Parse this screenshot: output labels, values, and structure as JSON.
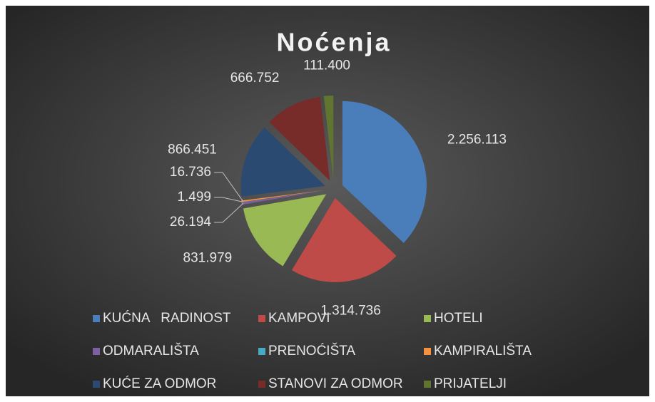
{
  "chart_data": {
    "type": "pie",
    "title": "Noćenja",
    "categories": [
      "KUĆNA   RADINOST",
      "KAMPOVI",
      "HOTELI",
      "ODMARALIŠTA",
      "PRENOĆIŠTA",
      "KAMPIRALIŠTA",
      "KUĆE ZA ODMOR",
      "STANOVI ZA ODMOR",
      "PRIJATELJI"
    ],
    "values": [
      2256113,
      1314736,
      831979,
      26194,
      1499,
      16736,
      866451,
      666752,
      111400
    ],
    "value_labels": [
      "2.256.113",
      "1.314.736",
      "831.979",
      "26.194",
      "1.499",
      "16.736",
      "866.451",
      "666.752",
      "111.400"
    ],
    "colors": [
      "#4a7ebb",
      "#be4b48",
      "#98b954",
      "#7d60a0",
      "#46aac5",
      "#f59240",
      "#2a4a72",
      "#772c2a",
      "#5f7530"
    ],
    "legend": "bottom"
  }
}
